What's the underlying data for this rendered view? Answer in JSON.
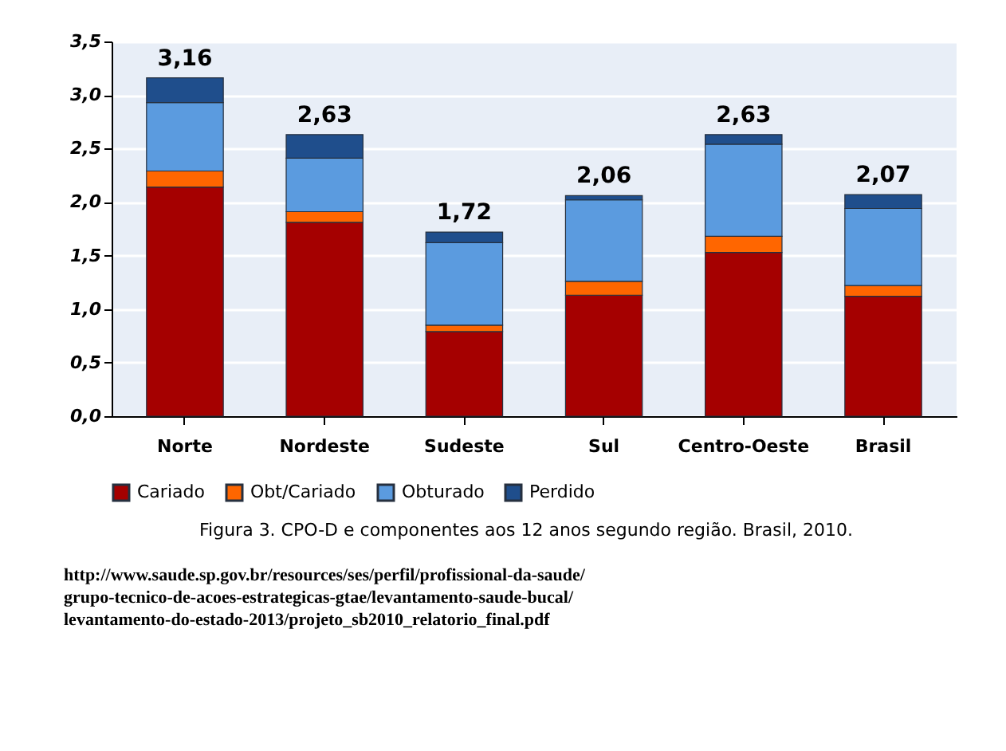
{
  "chart_data": {
    "type": "bar",
    "stacked": true,
    "categories": [
      "Norte",
      "Nordeste",
      "Sudeste",
      "Sul",
      "Centro-Oeste",
      "Brasil"
    ],
    "series": [
      {
        "name": "Cariado",
        "color": "#a50000",
        "values": [
          2.14,
          1.81,
          0.79,
          1.13,
          1.53,
          1.12
        ]
      },
      {
        "name": "Obt/Cariado",
        "color": "#ff6600",
        "values": [
          0.15,
          0.1,
          0.06,
          0.13,
          0.15,
          0.1
        ]
      },
      {
        "name": "Obturado",
        "color": "#5b9bdf",
        "values": [
          0.64,
          0.5,
          0.77,
          0.76,
          0.86,
          0.72
        ]
      },
      {
        "name": "Perdido",
        "color": "#1f4e8c",
        "values": [
          0.23,
          0.22,
          0.1,
          0.04,
          0.09,
          0.13
        ]
      }
    ],
    "totals": [
      "3,16",
      "2,63",
      "1,72",
      "2,06",
      "2,63",
      "2,07"
    ],
    "ylim": [
      0,
      3.5
    ],
    "yticks": [
      {
        "value": 0,
        "label": "0,0"
      },
      {
        "value": 0.5,
        "label": "0,5"
      },
      {
        "value": 1,
        "label": "1,0"
      },
      {
        "value": 1.5,
        "label": "1,5"
      },
      {
        "value": 2,
        "label": "2,0"
      },
      {
        "value": 2.5,
        "label": "2,5"
      },
      {
        "value": 3,
        "label": "3,0"
      },
      {
        "value": 3.5,
        "label": "3,5"
      }
    ],
    "grid": "y",
    "legend": "bottom",
    "annotations": [
      "Figura 3. CPO-D e componentes aos 12 anos segundo região. Brasil, 2010.",
      "http://www.saude.sp.gov.br/resources/ses/perfil/profissional-da-saude/grupo-tecnico-de-acoes-estrategicas-gtae/levantamento-saude-bucal/levantamento-do-estado-2013/projeto_sb2010_relatorio_final.pdf"
    ]
  }
}
